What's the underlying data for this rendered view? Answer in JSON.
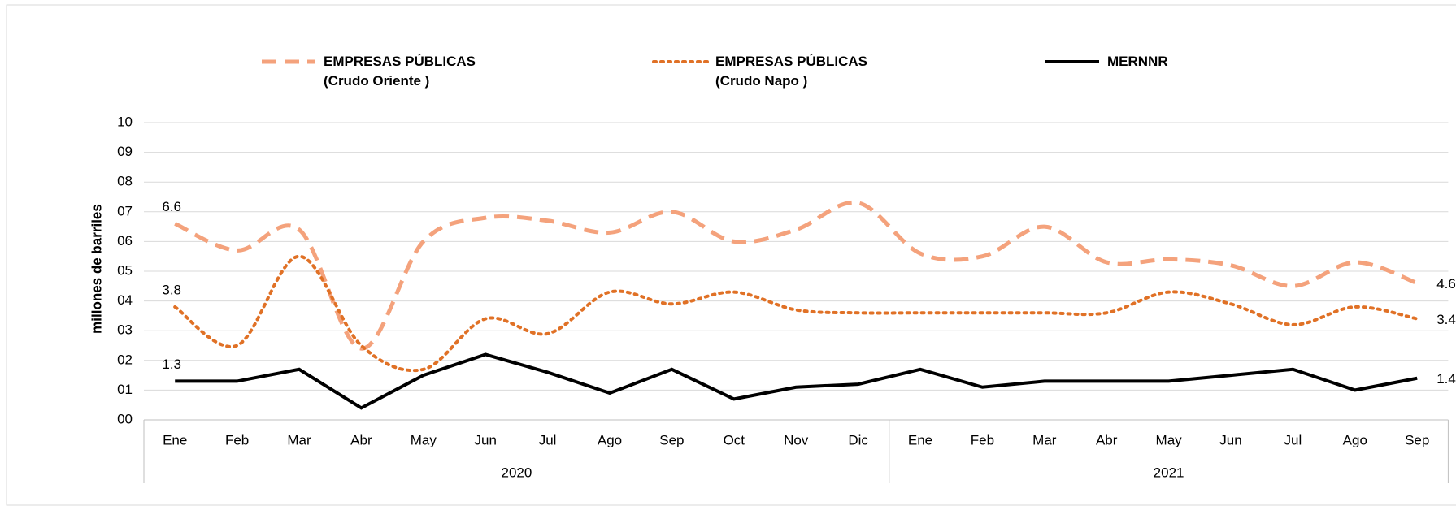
{
  "chart_data": {
    "type": "line",
    "y_label": "millones de barriles",
    "category_groups": [
      {
        "label": "2020",
        "categories": [
          "Ene",
          "Feb",
          "Mar",
          "Abr",
          "May",
          "Jun",
          "Jul",
          "Ago",
          "Sep",
          "Oct",
          "Nov",
          "Dic"
        ]
      },
      {
        "label": "2021",
        "categories": [
          "Ene",
          "Feb",
          "Mar",
          "Abr",
          "May",
          "Jun",
          "Jul",
          "Ago",
          "Sep"
        ]
      }
    ],
    "series": [
      {
        "name": "EMPRESAS PÚBLICAS\n(Crudo Oriente )",
        "color": "#f4a27c",
        "style": "dashed",
        "smooth": true,
        "values": [
          6.6,
          5.7,
          6.4,
          2.4,
          6.0,
          6.8,
          6.7,
          6.3,
          7.0,
          6.0,
          6.4,
          7.3,
          5.6,
          5.5,
          6.5,
          5.3,
          5.4,
          5.2,
          4.5,
          5.3,
          4.6
        ]
      },
      {
        "name": "EMPRESAS PÚBLICAS\n(Crudo Napo )",
        "color": "#e07126",
        "style": "dotted",
        "smooth": true,
        "values": [
          3.8,
          2.5,
          5.5,
          2.5,
          1.7,
          3.4,
          2.9,
          4.3,
          3.9,
          4.3,
          3.7,
          3.6,
          3.6,
          3.6,
          3.6,
          3.6,
          4.3,
          3.9,
          3.2,
          3.8,
          3.4
        ]
      },
      {
        "name": "MERNNR",
        "color": "#000000",
        "style": "solid",
        "smooth": false,
        "values": [
          1.3,
          1.3,
          1.7,
          0.4,
          1.5,
          2.2,
          1.6,
          0.9,
          1.7,
          0.7,
          1.1,
          1.2,
          1.7,
          1.1,
          1.3,
          1.3,
          1.3,
          1.5,
          1.7,
          1.0,
          1.4
        ]
      }
    ],
    "ylim": [
      0,
      10
    ],
    "yticks": [
      {
        "value": 0,
        "label": "00"
      },
      {
        "value": 1,
        "label": "01"
      },
      {
        "value": 2,
        "label": "02"
      },
      {
        "value": 3,
        "label": "03"
      },
      {
        "value": 4,
        "label": "04"
      },
      {
        "value": 5,
        "label": "05"
      },
      {
        "value": 6,
        "label": "06"
      },
      {
        "value": 7,
        "label": "07"
      },
      {
        "value": 8,
        "label": "08"
      },
      {
        "value": 9,
        "label": "09"
      },
      10
    ],
    "grid": true
  }
}
